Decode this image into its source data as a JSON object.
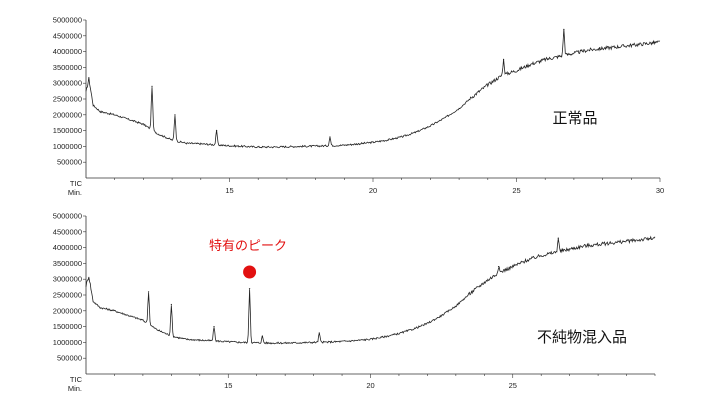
{
  "chart_data": [
    {
      "type": "line",
      "title": "",
      "xlabel": "Min.",
      "ylabel": "TIC",
      "label": "正常品",
      "xlim": [
        10,
        30
      ],
      "ylim": [
        0,
        5000000
      ],
      "grid": false,
      "x_ticks": [
        15,
        20,
        25,
        30
      ],
      "y_ticks": [
        500000,
        1000000,
        1500000,
        2000000,
        2500000,
        3000000,
        3500000,
        4000000,
        4500000,
        5000000
      ],
      "x_tick_labels": [
        "15",
        "20",
        "25",
        "30"
      ],
      "y_tick_labels": [
        "500000",
        "1000000",
        "1500000",
        "2000000",
        "2500000",
        "3000000",
        "3500000",
        "4000000",
        "4500000",
        "5000000"
      ],
      "series": [
        {
          "x": [
            10.0,
            10.1,
            10.25,
            10.5,
            11.0,
            11.5,
            12.0,
            12.5,
            13.0,
            13.5,
            14.0,
            14.5,
            15.0,
            15.5,
            16.0,
            16.5,
            17.0,
            17.5,
            18.0,
            18.5,
            19.0,
            19.5,
            20.0,
            20.5,
            21.0,
            21.5,
            22.0,
            22.5,
            23.0,
            23.5,
            24.0,
            24.5,
            25.0,
            25.5,
            26.0,
            26.5,
            27.0,
            27.5,
            28.0,
            28.5,
            29.0,
            29.5,
            30.0
          ],
          "y": [
            2700000,
            3150000,
            2300000,
            2100000,
            2000000,
            1850000,
            1700000,
            1400000,
            1200000,
            1100000,
            1080000,
            1050000,
            1020000,
            1000000,
            980000,
            980000,
            990000,
            1000000,
            1010000,
            1020000,
            1040000,
            1080000,
            1130000,
            1200000,
            1300000,
            1450000,
            1650000,
            1900000,
            2200000,
            2600000,
            2950000,
            3250000,
            3400000,
            3600000,
            3750000,
            3850000,
            3950000,
            4050000,
            4100000,
            4150000,
            4200000,
            4250000,
            4300000
          ],
          "peaks": [
            {
              "x": 12.3,
              "y": 2900000
            },
            {
              "x": 13.1,
              "y": 2000000
            },
            {
              "x": 14.55,
              "y": 1500000
            },
            {
              "x": 18.5,
              "y": 1300000
            },
            {
              "x": 24.55,
              "y": 3750000
            },
            {
              "x": 26.65,
              "y": 4700000
            }
          ]
        }
      ]
    },
    {
      "type": "line",
      "title": "",
      "xlabel": "Min.",
      "ylabel": "TIC",
      "label": "不純物混入品",
      "annotation": "特有のピーク",
      "annotation_peak_x": 15.75,
      "annotation_color": "#e21010",
      "xlim": [
        10,
        30
      ],
      "ylim": [
        0,
        5000000
      ],
      "grid": false,
      "x_ticks": [
        15,
        20,
        25
      ],
      "y_ticks": [
        500000,
        1000000,
        1500000,
        2000000,
        2500000,
        3000000,
        3500000,
        4000000,
        4500000,
        5000000
      ],
      "x_tick_labels": [
        "15",
        "20",
        "25"
      ],
      "y_tick_labels": [
        "500000",
        "1000000",
        "1500000",
        "2000000",
        "2500000",
        "3000000",
        "3500000",
        "4000000",
        "4500000",
        "5000000"
      ],
      "series": [
        {
          "x": [
            10.0,
            10.1,
            10.25,
            10.5,
            11.0,
            11.5,
            12.0,
            12.5,
            13.0,
            13.5,
            14.0,
            14.5,
            15.0,
            15.5,
            16.0,
            16.5,
            17.0,
            17.5,
            18.0,
            18.5,
            19.0,
            19.5,
            20.0,
            20.5,
            21.0,
            21.5,
            22.0,
            22.5,
            23.0,
            23.5,
            24.0,
            24.5,
            25.0,
            25.5,
            26.0,
            26.5,
            27.0,
            27.5,
            28.0,
            28.5,
            29.0,
            29.5,
            30.0
          ],
          "y": [
            2800000,
            3100000,
            2300000,
            2100000,
            2000000,
            1850000,
            1700000,
            1400000,
            1200000,
            1100000,
            1070000,
            1050000,
            1020000,
            1000000,
            990000,
            980000,
            980000,
            990000,
            1000000,
            1010000,
            1030000,
            1060000,
            1100000,
            1180000,
            1280000,
            1420000,
            1600000,
            1850000,
            2150000,
            2550000,
            2900000,
            3200000,
            3400000,
            3600000,
            3750000,
            3850000,
            3950000,
            4050000,
            4100000,
            4150000,
            4200000,
            4250000,
            4300000
          ],
          "peaks": [
            {
              "x": 12.2,
              "y": 2600000
            },
            {
              "x": 13.0,
              "y": 2200000
            },
            {
              "x": 14.5,
              "y": 1500000
            },
            {
              "x": 15.75,
              "y": 2700000
            },
            {
              "x": 16.2,
              "y": 1200000
            },
            {
              "x": 18.2,
              "y": 1300000
            },
            {
              "x": 24.5,
              "y": 3400000
            },
            {
              "x": 26.6,
              "y": 4300000
            }
          ]
        }
      ]
    }
  ]
}
